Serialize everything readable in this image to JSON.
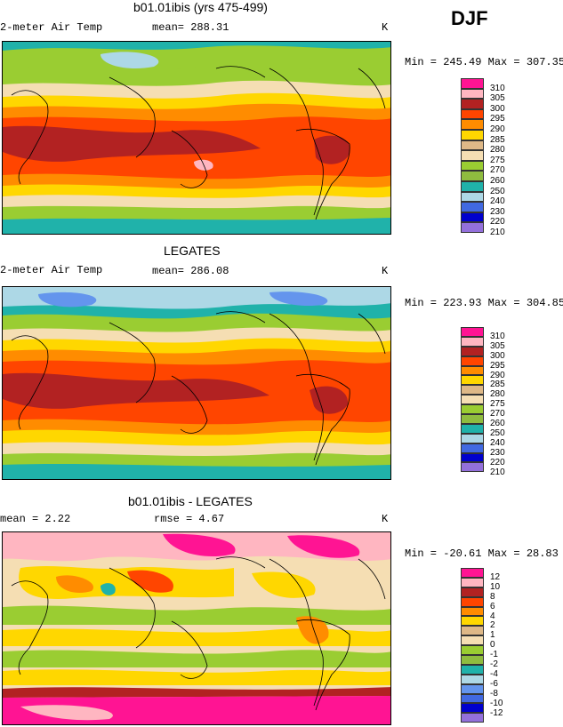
{
  "season": "DJF",
  "panels": [
    {
      "title": "b01.01ibis (yrs 475-499)",
      "left_label": "2-meter Air Temp",
      "stat_label": "mean= 288.31",
      "unit": "K",
      "minmax": "Min = 245.49 Max = 307.35",
      "legend": {
        "colors": [
          "#ff1493",
          "#ffb6c1",
          "#b22222",
          "#ff4500",
          "#ff8c00",
          "#ffd700",
          "#deb887",
          "#f5deb3",
          "#9acd32",
          "#8fbc3f",
          "#20b2aa",
          "#add8e6",
          "#4169e1",
          "#0000cd",
          "#9370db"
        ],
        "labels": [
          "310",
          "305",
          "300",
          "295",
          "290",
          "285",
          "280",
          "275",
          "270",
          "260",
          "250",
          "240",
          "230",
          "220",
          "210"
        ]
      }
    },
    {
      "title": "LEGATES",
      "left_label": "2-meter Air Temp",
      "stat_label": "mean= 286.08",
      "unit": "K",
      "minmax": "Min = 223.93 Max = 304.85",
      "legend": {
        "colors": [
          "#ff1493",
          "#ffb6c1",
          "#b22222",
          "#ff4500",
          "#ff8c00",
          "#ffd700",
          "#deb887",
          "#f5deb3",
          "#9acd32",
          "#8fbc3f",
          "#20b2aa",
          "#add8e6",
          "#4169e1",
          "#0000cd",
          "#9370db"
        ],
        "labels": [
          "310",
          "305",
          "300",
          "295",
          "290",
          "285",
          "280",
          "275",
          "270",
          "260",
          "250",
          "240",
          "230",
          "220",
          "210"
        ]
      }
    },
    {
      "title": "b01.01ibis - LEGATES",
      "left_label": "mean =    2.22",
      "stat_label": "rmse =    4.67",
      "unit": "K",
      "minmax": "Min = -20.61 Max =  28.83",
      "legend": {
        "colors": [
          "#ff1493",
          "#ffb6c1",
          "#b22222",
          "#ff4500",
          "#ff8c00",
          "#ffd700",
          "#deb887",
          "#f5deb3",
          "#9acd32",
          "#8fbc3f",
          "#20b2aa",
          "#add8e6",
          "#6495ed",
          "#4169e1",
          "#0000cd",
          "#9370db"
        ],
        "labels": [
          "12",
          "10",
          "8",
          "6",
          "4",
          "2",
          "1",
          "0",
          "-1",
          "-2",
          "-4",
          "-6",
          "-8",
          "-10",
          "-12"
        ]
      }
    }
  ]
}
